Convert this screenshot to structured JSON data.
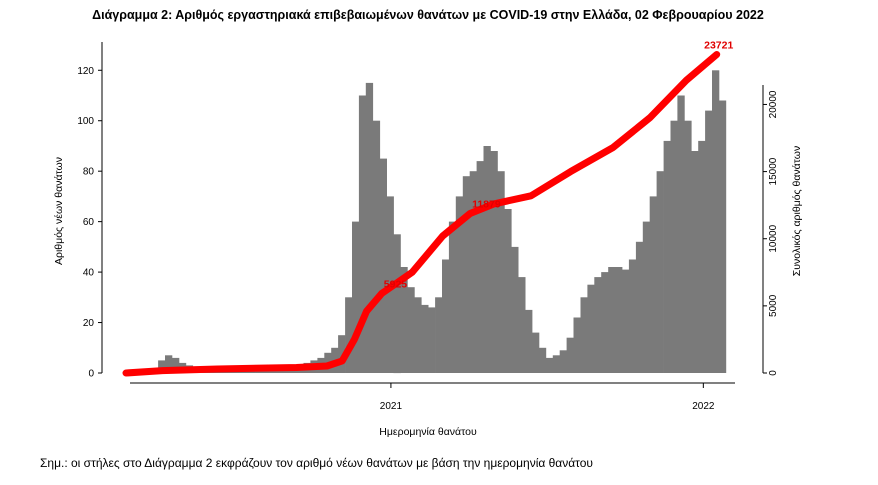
{
  "chart_data": {
    "type": "bar+line",
    "title": "Διάγραμμα 2: Αριθμός εργαστηριακά επιβεβαιωμένων θανάτων με COVID-19 στην Ελλάδα, 02 Φεβρουαρίου 2022",
    "xlabel": "Ημερομηνία θανάτου",
    "ylabel_left": "Αριθμός νέων θανάτων",
    "ylabel_right": "Συνολικός αριθμός θανάτων",
    "x_ticks": [
      "2021",
      "2022"
    ],
    "y_left_ticks": [
      "0",
      "20",
      "40",
      "60",
      "80",
      "100",
      "120"
    ],
    "y_left_lim": [
      0,
      132
    ],
    "y_right_ticks": [
      "0",
      "5000",
      "10000",
      "15000",
      "20000"
    ],
    "y_right_lim": [
      0,
      24800
    ],
    "bars_weekly_daily_average": {
      "description": "daily new deaths, weekly representative values from ~Mar 2020 to early Feb 2022",
      "values": [
        1,
        2,
        5,
        7,
        6,
        4,
        3,
        2,
        2,
        1,
        1,
        1,
        1,
        1,
        1,
        1,
        1,
        2,
        2,
        2,
        2,
        3,
        3,
        4,
        5,
        6,
        8,
        10,
        15,
        30,
        60,
        110,
        115,
        100,
        85,
        70,
        55,
        42,
        34,
        30,
        27,
        26,
        30,
        45,
        60,
        70,
        78,
        80,
        84,
        90,
        88,
        80,
        65,
        50,
        38,
        25,
        16,
        10,
        6,
        7,
        9,
        14,
        22,
        30,
        35,
        38,
        40,
        42,
        42,
        41,
        45,
        52,
        60,
        70,
        80,
        92,
        100,
        110,
        100,
        88,
        92,
        104,
        120,
        108
      ]
    },
    "cumulative_points": [
      {
        "pos": 0.0,
        "value": 0
      },
      {
        "pos": 0.06,
        "value": 180
      },
      {
        "pos": 0.15,
        "value": 300
      },
      {
        "pos": 0.28,
        "value": 410
      },
      {
        "pos": 0.33,
        "value": 520
      },
      {
        "pos": 0.355,
        "value": 900
      },
      {
        "pos": 0.375,
        "value": 2500
      },
      {
        "pos": 0.395,
        "value": 4600
      },
      {
        "pos": 0.42,
        "value": 5925
      },
      {
        "pos": 0.47,
        "value": 7500
      },
      {
        "pos": 0.52,
        "value": 10200
      },
      {
        "pos": 0.565,
        "value": 11879
      },
      {
        "pos": 0.605,
        "value": 12600
      },
      {
        "pos": 0.665,
        "value": 13200
      },
      {
        "pos": 0.73,
        "value": 15000
      },
      {
        "pos": 0.8,
        "value": 16800
      },
      {
        "pos": 0.86,
        "value": 19000
      },
      {
        "pos": 0.92,
        "value": 21800
      },
      {
        "pos": 0.97,
        "value": 23721
      }
    ],
    "annotations": [
      "5925",
      "11879",
      "23721"
    ]
  },
  "note": "Σημ.: οι στήλες στο Διάγραμμα 2 εκφράζουν τον αριθμό νέων θανάτων με βάση την ημερομηνία θανάτου"
}
